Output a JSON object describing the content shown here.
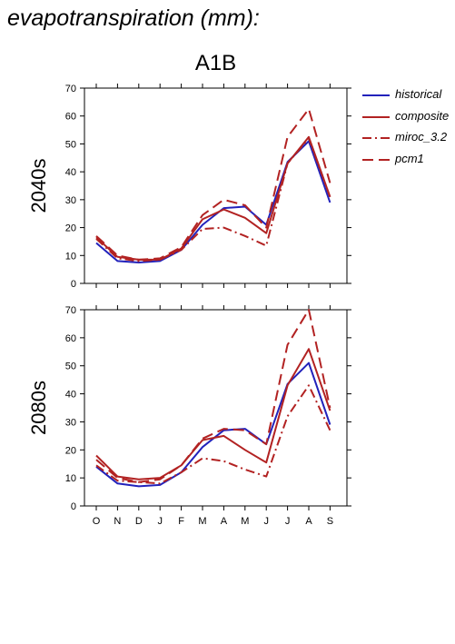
{
  "title": "evapotranspiration (mm):",
  "scenario": "A1B",
  "chart_data": {
    "type": "line",
    "categories": [
      "O",
      "N",
      "D",
      "J",
      "F",
      "M",
      "A",
      "M",
      "J",
      "J",
      "A",
      "S"
    ],
    "ylim": [
      0,
      70
    ],
    "yticks": [
      "0",
      "10",
      "20",
      "30",
      "40",
      "50",
      "60",
      "70"
    ],
    "legend_position": "right",
    "series_styles": [
      {
        "name": "historical",
        "color": "#2222bb",
        "dash": "none"
      },
      {
        "name": "composite",
        "color": "#b22222",
        "dash": "none"
      },
      {
        "name": "miroc_3.2",
        "color": "#b22222",
        "dash": "10,4,2,4"
      },
      {
        "name": "pcm1",
        "color": "#b22222",
        "dash": "12,6"
      }
    ],
    "panels": [
      {
        "label": "2040s",
        "series": [
          {
            "name": "historical",
            "values": [
              14.5,
              8,
              7.5,
              8,
              12,
              21,
              27,
              27.5,
              21,
              43.5,
              51,
              29
            ]
          },
          {
            "name": "composite",
            "values": [
              16.5,
              9.5,
              8.5,
              8.5,
              12.5,
              23,
              26.5,
              23.5,
              18,
              43,
              52.5,
              31
            ]
          },
          {
            "name": "miroc_3.2",
            "values": [
              16,
              9,
              8,
              8.5,
              12,
              19.5,
              20,
              17,
              13.5,
              43,
              52,
              31
            ]
          },
          {
            "name": "pcm1",
            "values": [
              17,
              10,
              8.5,
              9,
              13,
              24.5,
              30,
              28,
              20,
              52.5,
              62.5,
              36
            ]
          }
        ]
      },
      {
        "label": "2080s",
        "series": [
          {
            "name": "historical",
            "values": [
              14,
              8,
              7,
              7.5,
              12,
              21,
              27,
              27.5,
              22,
              43.5,
              51,
              29
            ]
          },
          {
            "name": "composite",
            "values": [
              18,
              10.5,
              9.5,
              10,
              14.5,
              23.5,
              25,
              20,
              15.5,
              43,
              56,
              34
            ]
          },
          {
            "name": "miroc_3.2",
            "values": [
              14.5,
              9,
              8.5,
              8,
              12,
              17,
              16,
              13,
              10.5,
              32,
              43,
              27
            ]
          },
          {
            "name": "pcm1",
            "values": [
              16.5,
              10,
              8.5,
              9.5,
              14.5,
              24,
              27.5,
              27,
              22,
              57.5,
              70,
              35
            ]
          }
        ]
      }
    ]
  }
}
